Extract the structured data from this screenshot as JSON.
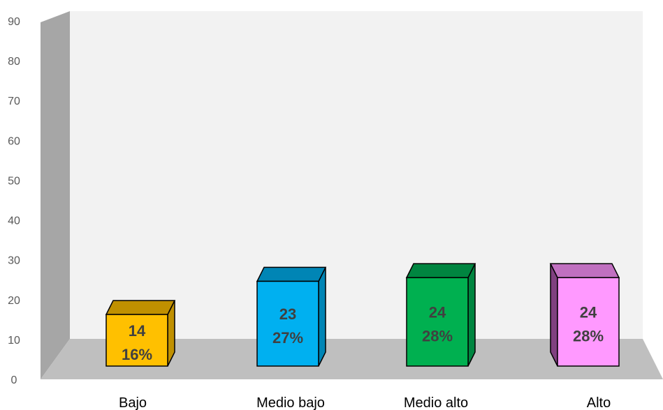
{
  "chart_data": {
    "type": "bar",
    "style": "3d-column",
    "categories": [
      "Bajo",
      "Medio bajo",
      "Medio alto",
      "Alto"
    ],
    "values": [
      14,
      23,
      24,
      24
    ],
    "percent_labels": [
      "16%",
      "27%",
      "28%",
      "28%"
    ],
    "value_labels": [
      "14",
      "23",
      "24",
      "24"
    ],
    "ylim": [
      0,
      90
    ],
    "yticks": [
      "0",
      "10",
      "20",
      "30",
      "40",
      "50",
      "60",
      "70",
      "80",
      "90"
    ],
    "grid": false,
    "legend": "none",
    "colors": {
      "bars": [
        "#FFC000",
        "#00B0F0",
        "#00B050",
        "#FF99FF"
      ],
      "bar_tops": [
        "#C09000",
        "#0085B5",
        "#008540",
        "#C070C0"
      ],
      "bar_sides": [
        "#C09000",
        "#0085B5",
        "#008540",
        "#804080"
      ],
      "back_wall": "#F2F2F2",
      "side_wall": "#A6A6A6",
      "floor": "#BFBFBF"
    }
  }
}
